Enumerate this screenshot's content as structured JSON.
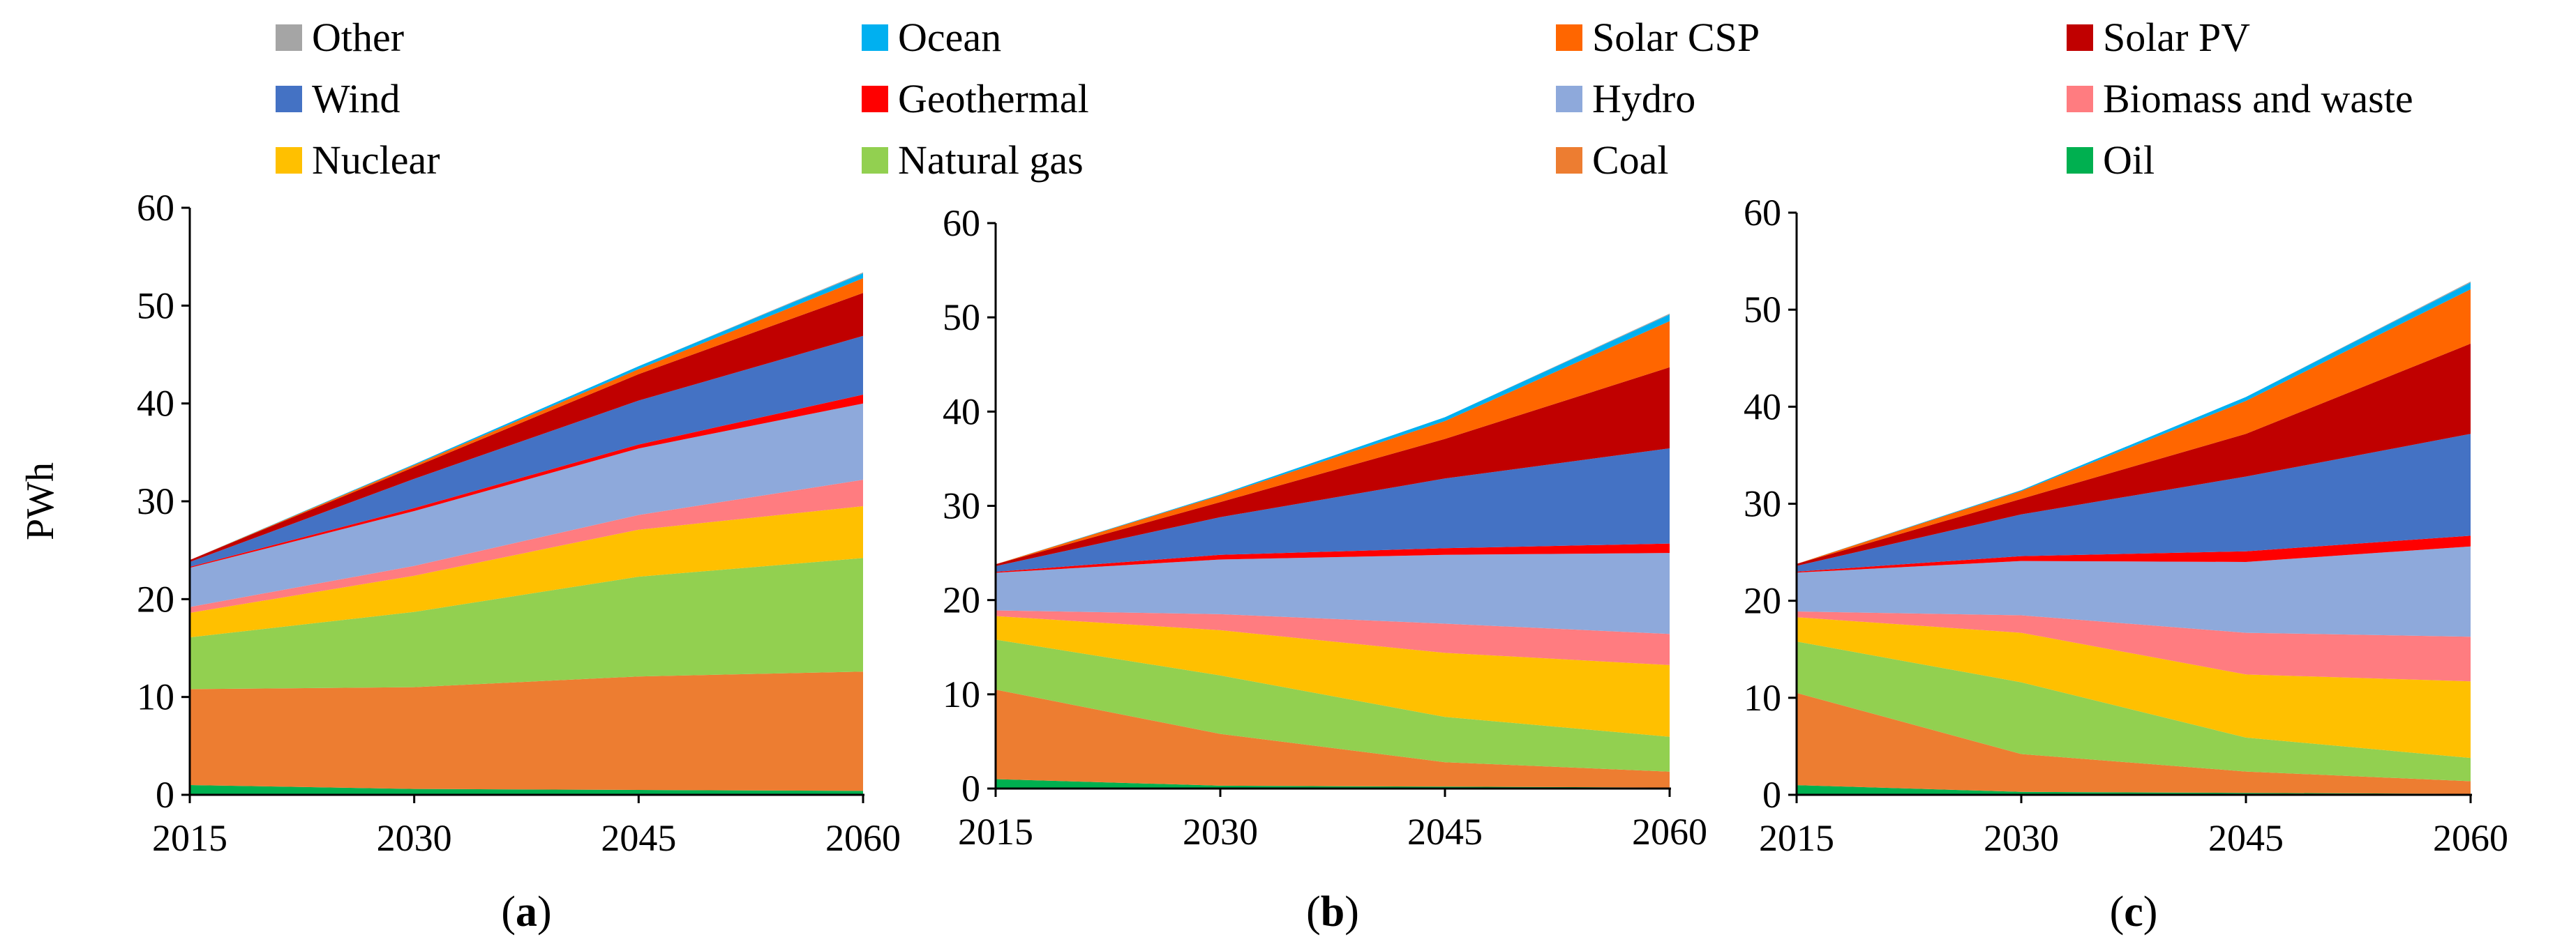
{
  "legend": [
    {
      "name": "Other",
      "color": "#A5A5A5"
    },
    {
      "name": "Ocean",
      "color": "#00B0F0"
    },
    {
      "name": "Solar CSP",
      "color": "#FF6600"
    },
    {
      "name": "Solar PV",
      "color": "#C00000"
    },
    {
      "name": "Wind",
      "color": "#4472C4"
    },
    {
      "name": "Geothermal",
      "color": "#FF0000"
    },
    {
      "name": "Hydro",
      "color": "#8EA9DB"
    },
    {
      "name": "Biomass and waste",
      "color": "#FF7C80"
    },
    {
      "name": "Nuclear",
      "color": "#FFC000"
    },
    {
      "name": "Natural gas",
      "color": "#92D050"
    },
    {
      "name": "Coal",
      "color": "#ED7D31"
    },
    {
      "name": "Oil",
      "color": "#00B050"
    }
  ],
  "chart_data": [
    {
      "type": "area",
      "stacked": true,
      "panel_label": "a",
      "ylabel": "PWh",
      "ylim": [
        0,
        60
      ],
      "yticks": [
        "0",
        "10",
        "20",
        "30",
        "40",
        "50",
        "60"
      ],
      "categories": [
        "2015",
        "2030",
        "2045",
        "2060"
      ],
      "series": [
        {
          "name": "Oil",
          "values": [
            1.0,
            0.6,
            0.5,
            0.4
          ]
        },
        {
          "name": "Coal",
          "values": [
            9.8,
            10.4,
            11.6,
            12.2
          ]
        },
        {
          "name": "Natural gas",
          "values": [
            5.3,
            7.7,
            10.2,
            11.6
          ]
        },
        {
          "name": "Nuclear",
          "values": [
            2.5,
            3.7,
            4.8,
            5.3
          ]
        },
        {
          "name": "Biomass and waste",
          "values": [
            0.6,
            1.0,
            1.5,
            2.7
          ]
        },
        {
          "name": "Hydro",
          "values": [
            4.0,
            5.6,
            6.8,
            7.8
          ]
        },
        {
          "name": "Geothermal",
          "values": [
            0.1,
            0.3,
            0.4,
            0.9
          ]
        },
        {
          "name": "Wind",
          "values": [
            0.5,
            3.0,
            4.5,
            6.0
          ]
        },
        {
          "name": "Solar PV",
          "values": [
            0.2,
            1.2,
            2.7,
            4.4
          ]
        },
        {
          "name": "Solar CSP",
          "values": [
            0.0,
            0.2,
            0.5,
            1.5
          ]
        },
        {
          "name": "Ocean",
          "values": [
            0.0,
            0.1,
            0.3,
            0.5
          ]
        },
        {
          "name": "Other",
          "values": [
            0.0,
            0.0,
            0.0,
            0.1
          ]
        }
      ]
    },
    {
      "type": "area",
      "stacked": true,
      "panel_label": "b",
      "ylabel": "",
      "ylim": [
        0,
        60
      ],
      "yticks": [
        "0",
        "10",
        "20",
        "30",
        "40",
        "50",
        "60"
      ],
      "categories": [
        "2015",
        "2030",
        "2045",
        "2060"
      ],
      "series": [
        {
          "name": "Oil",
          "values": [
            1.0,
            0.3,
            0.2,
            0.1
          ]
        },
        {
          "name": "Coal",
          "values": [
            9.5,
            5.5,
            2.6,
            1.7
          ]
        },
        {
          "name": "Natural gas",
          "values": [
            5.3,
            6.2,
            4.8,
            3.7
          ]
        },
        {
          "name": "Nuclear",
          "values": [
            2.5,
            4.8,
            6.8,
            7.6
          ]
        },
        {
          "name": "Biomass and waste",
          "values": [
            0.6,
            1.7,
            3.1,
            3.3
          ]
        },
        {
          "name": "Hydro",
          "values": [
            4.0,
            5.8,
            7.3,
            8.6
          ]
        },
        {
          "name": "Geothermal",
          "values": [
            0.1,
            0.5,
            0.7,
            1.0
          ]
        },
        {
          "name": "Wind",
          "values": [
            0.6,
            4.0,
            7.4,
            10.1
          ]
        },
        {
          "name": "Solar PV",
          "values": [
            0.2,
            1.6,
            4.2,
            8.6
          ]
        },
        {
          "name": "Solar CSP",
          "values": [
            0.0,
            0.7,
            1.9,
            4.9
          ]
        },
        {
          "name": "Ocean",
          "values": [
            0.0,
            0.1,
            0.4,
            0.7
          ]
        },
        {
          "name": "Other",
          "values": [
            0.0,
            0.0,
            0.0,
            0.1
          ]
        }
      ]
    },
    {
      "type": "area",
      "stacked": true,
      "panel_label": "c",
      "ylabel": "",
      "ylim": [
        0,
        60
      ],
      "yticks": [
        "0",
        "10",
        "20",
        "30",
        "40",
        "50",
        "60"
      ],
      "categories": [
        "2015",
        "2030",
        "2045",
        "2060"
      ],
      "series": [
        {
          "name": "Oil",
          "values": [
            1.0,
            0.3,
            0.2,
            0.1
          ]
        },
        {
          "name": "Coal",
          "values": [
            9.5,
            3.9,
            2.2,
            1.3
          ]
        },
        {
          "name": "Natural gas",
          "values": [
            5.3,
            7.4,
            3.5,
            2.4
          ]
        },
        {
          "name": "Nuclear",
          "values": [
            2.5,
            5.1,
            6.5,
            7.9
          ]
        },
        {
          "name": "Biomass and waste",
          "values": [
            0.6,
            1.8,
            4.3,
            4.6
          ]
        },
        {
          "name": "Hydro",
          "values": [
            4.0,
            5.6,
            7.3,
            9.3
          ]
        },
        {
          "name": "Geothermal",
          "values": [
            0.1,
            0.5,
            1.1,
            1.1
          ]
        },
        {
          "name": "Wind",
          "values": [
            0.6,
            4.3,
            7.7,
            10.5
          ]
        },
        {
          "name": "Solar PV",
          "values": [
            0.2,
            1.6,
            4.4,
            9.3
          ]
        },
        {
          "name": "Solar CSP",
          "values": [
            0.0,
            0.8,
            3.4,
            5.6
          ]
        },
        {
          "name": "Ocean",
          "values": [
            0.0,
            0.1,
            0.4,
            0.7
          ]
        },
        {
          "name": "Other",
          "values": [
            0.0,
            0.0,
            0.0,
            0.1
          ]
        }
      ]
    }
  ]
}
